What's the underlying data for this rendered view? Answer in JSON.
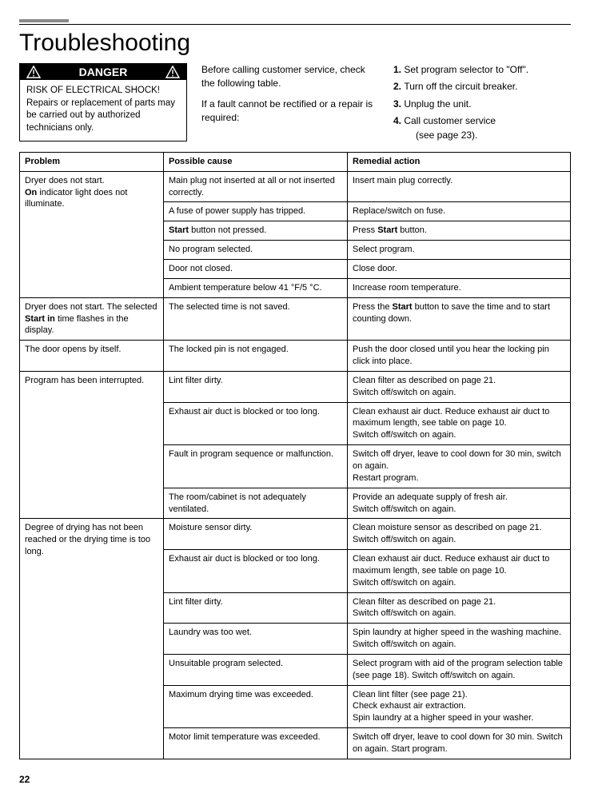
{
  "page_title": "Troubleshooting",
  "danger": {
    "header": "DANGER",
    "body": "RISK OF ELECTRICAL SHOCK! Repairs or replacement of parts may be carried out by authorized technicians only."
  },
  "intro_col1": {
    "p1": "Before calling customer service, check the following table.",
    "p2": "If a fault cannot be rectified or a repair is required:"
  },
  "steps": [
    {
      "n": "1.",
      "t": "Set program selector to \"Off\"."
    },
    {
      "n": "2.",
      "t": "Turn off the circuit breaker."
    },
    {
      "n": "3.",
      "t": "Unplug the unit."
    },
    {
      "n": "4.",
      "t": "Call customer service",
      "sub": "(see page 23)."
    }
  ],
  "table": {
    "headers": [
      "Problem",
      "Possible cause",
      "Remedial action"
    ],
    "groups": [
      {
        "problem_lines": [
          {
            "t": "Dryer does not start."
          },
          {
            "pre_b": "On",
            "t": " indicator light does not illuminate."
          }
        ],
        "rows": [
          {
            "cause": "Main plug not inserted at all or not inserted correctly.",
            "action": "Insert main plug correctly."
          },
          {
            "cause": "A fuse of power supply has tripped.",
            "action": "Replace/switch on fuse."
          },
          {
            "cause_pre_b": "Start",
            "cause": " button not pressed.",
            "action_pre": "Press ",
            "action_b": "Start",
            "action_post": " button."
          },
          {
            "cause": "No program selected.",
            "action": "Select program."
          },
          {
            "cause": "Door not closed.",
            "action": "Close door."
          },
          {
            "cause": "Ambient temperature below 41 °F/5 °C.",
            "action": "Increase room temperature."
          }
        ]
      },
      {
        "problem_lines": [
          {
            "t1": "Dryer does not start. The selected ",
            "b1": "Start",
            "t2": " ",
            "b2": "in",
            "t3": " time flashes in the display."
          }
        ],
        "rows": [
          {
            "cause": "The selected time is not saved.",
            "action_pre": "Press the ",
            "action_b": "Start",
            "action_post": " button to save the time and to start counting down."
          }
        ]
      },
      {
        "problem_lines": [
          {
            "t": "The door opens by itself."
          }
        ],
        "rows": [
          {
            "cause": "The locked pin is not engaged.",
            "action": "Push the door closed until you hear the locking pin click into place."
          }
        ]
      },
      {
        "problem_lines": [
          {
            "t": "Program has been interrupted."
          }
        ],
        "rows": [
          {
            "cause": "Lint filter dirty.",
            "action": "Clean filter as described on page 21.\nSwitch off/switch on again."
          },
          {
            "cause": "Exhaust air duct is blocked or too long.",
            "action": "Clean exhaust air duct. Reduce exhaust air duct to maximum length, see table on page 10.\nSwitch off/switch on again."
          },
          {
            "cause": "Fault in program sequence or malfunction.",
            "action": "Switch off dryer, leave to cool down for 30 min, switch on again.\nRestart program."
          },
          {
            "cause": "The room/cabinet is not adequately ventilated.",
            "action": "Provide an adequate supply of fresh air.\nSwitch off/switch on again."
          }
        ]
      },
      {
        "problem_lines": [
          {
            "t": "Degree of drying has not been reached or the drying time is too long."
          }
        ],
        "rows": [
          {
            "cause": "Moisture sensor dirty.",
            "action": "Clean moisture sensor as described on page 21.\nSwitch off/switch on again."
          },
          {
            "cause": "Exhaust air duct is blocked or too long.",
            "action": "Clean exhaust air duct. Reduce exhaust air duct to maximum length, see table on page 10.\nSwitch off/switch on again."
          },
          {
            "cause": "Lint filter dirty.",
            "action": "Clean filter as described on page 21.\nSwitch off/switch on again."
          },
          {
            "cause": "Laundry was too wet.",
            "action": "Spin laundry at higher speed in the washing machine. Switch off/switch on again."
          },
          {
            "cause": "Unsuitable program selected.",
            "action": "Select program with aid of the program selection table (see page 18). Switch off/switch on again."
          },
          {
            "cause": "Maximum drying time was exceeded.",
            "action": "Clean lint filter (see page 21).\nCheck exhaust air extraction.\nSpin laundry at a higher speed in your washer."
          },
          {
            "cause": "Motor limit temperature was exceeded.",
            "action": "Switch off dryer, leave to cool down for 30 min. Switch on again. Start program."
          }
        ]
      }
    ]
  },
  "page_number": "22",
  "colors": {
    "rule_grey": "#898989",
    "black": "#000000",
    "white": "#ffffff"
  }
}
